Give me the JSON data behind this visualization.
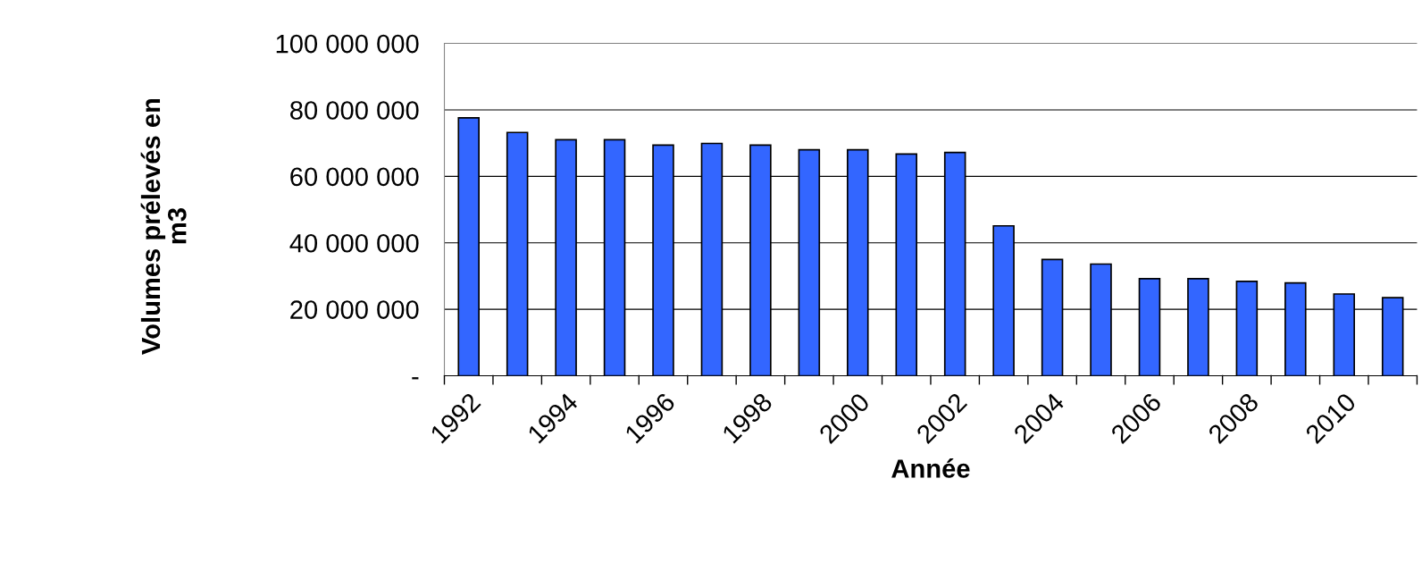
{
  "chart_data": {
    "type": "bar",
    "xlabel": "Année",
    "ylabel": "Volumes prélevés en\nm3",
    "categories": [
      "1992",
      null,
      "1994",
      null,
      "1996",
      null,
      "1998",
      null,
      "2000",
      null,
      "2002",
      null,
      "2004",
      null,
      "2006",
      null,
      "2008",
      null,
      "2010",
      null
    ],
    "values": [
      77600000,
      73200000,
      71000000,
      71000000,
      69400000,
      69900000,
      69400000,
      68000000,
      68000000,
      66700000,
      67200000,
      45100000,
      35000000,
      33600000,
      29200000,
      29200000,
      28400000,
      27900000,
      24600000,
      23500000
    ],
    "color": "#3366ff",
    "ylim": [
      0,
      100000000
    ],
    "yticks": [
      {
        "value": 0,
        "label": "-"
      },
      {
        "value": 20000000,
        "label": "20 000 000"
      },
      {
        "value": 40000000,
        "label": "40 000 000"
      },
      {
        "value": 60000000,
        "label": "60 000 000"
      },
      {
        "value": 80000000,
        "label": "80 000 000"
      },
      {
        "value": 100000000,
        "label": "100 000 000"
      }
    ],
    "grid": "y",
    "legend": false
  }
}
